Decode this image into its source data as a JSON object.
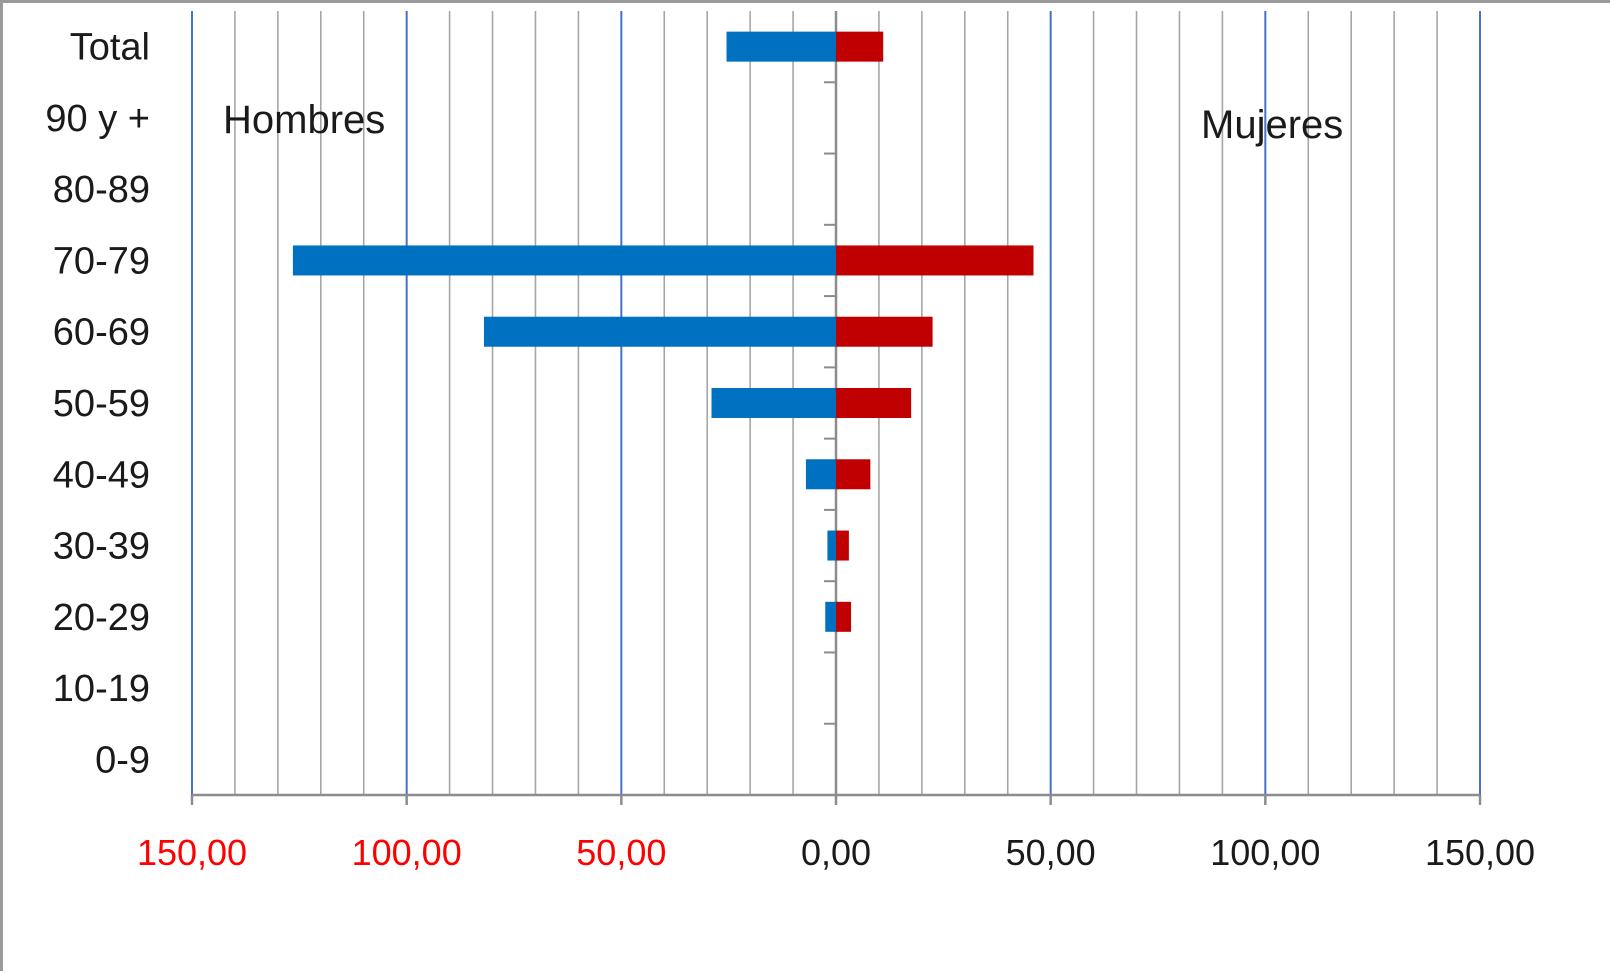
{
  "chart_data": {
    "type": "bar",
    "orientation": "horizontal",
    "categories": [
      "Total",
      "90 y +",
      "80-89",
      "70-79",
      "60-69",
      "50-59",
      "40-49",
      "30-39",
      "20-29",
      "10-19",
      "0-9"
    ],
    "series": [
      {
        "values": [
          -25.5,
          0,
          0,
          -126.5,
          -82,
          -29,
          -7,
          -2,
          -2.5,
          0,
          0
        ],
        "color": "#0070C0"
      },
      {
        "values": [
          11,
          0,
          0,
          46,
          22.5,
          17.5,
          8,
          3,
          3.5,
          0,
          0
        ],
        "color": "#C00000"
      }
    ],
    "xlim": [
      -150,
      150
    ],
    "x_tick_values": [
      -150,
      -100,
      -50,
      0,
      50,
      100,
      150
    ],
    "x_tick_labels": [
      "150,00",
      "100,00",
      "50,00",
      "0,00",
      "50,00",
      "100,00",
      "150,00"
    ],
    "x_tick_colors": [
      "#FF0000",
      "#FF0000",
      "#FF0000",
      "#1a1a1a",
      "#1a1a1a",
      "#1a1a1a",
      "#1a1a1a"
    ],
    "annotations": {
      "left": "Hombres",
      "right": "Mujeres"
    },
    "grid": true,
    "major_grid_color": "#4472C4",
    "minor_grid_color": "#A6A6A6"
  }
}
